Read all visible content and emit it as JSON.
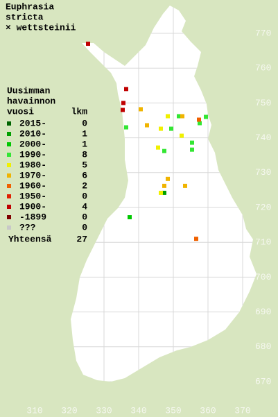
{
  "chart_data": {
    "type": "scatter",
    "title": [
      "Euphrasia",
      "stricta",
      "× wettsteinii"
    ],
    "legend_title": [
      "Uusimman",
      "havainnon",
      "vuosi"
    ],
    "count_label": "lkm",
    "total_label": "Yhteensä",
    "total": 27,
    "xlim": [
      310,
      370
    ],
    "xticks": [
      310,
      320,
      330,
      340,
      350,
      360,
      370
    ],
    "ylim": [
      670,
      770
    ],
    "yticks": [
      670,
      680,
      690,
      700,
      710,
      720,
      730,
      740,
      750,
      760,
      770
    ],
    "grid": true,
    "series": [
      {
        "name": "2015-",
        "color": "#006400",
        "count": 0,
        "x": [],
        "y": []
      },
      {
        "name": "2010-",
        "color": "#00a000",
        "count": 1,
        "x": [
          347.4
        ],
        "y": [
          724.2
        ]
      },
      {
        "name": "2000-",
        "color": "#00c800",
        "count": 1,
        "x": [
          337.4
        ],
        "y": [
          717.2
        ]
      },
      {
        "name": "1990-",
        "color": "#33e633",
        "count": 8,
        "x": [
          336.4,
          351.6,
          359.4,
          357.6,
          349.4,
          355.4,
          355.4,
          347.4
        ],
        "y": [
          743,
          746.2,
          746,
          744.2,
          742.6,
          738.6,
          736.6,
          736.2
        ]
      },
      {
        "name": "1980-",
        "color": "#f0f000",
        "count": 5,
        "x": [
          348.4,
          346.4,
          352.4,
          345.6,
          346.4
        ],
        "y": [
          746.2,
          742.6,
          740.6,
          737.2,
          724.2
        ]
      },
      {
        "name": "1970-",
        "color": "#f0b400",
        "count": 6,
        "x": [
          340.6,
          352.6,
          342.4,
          348.4,
          347.4,
          353.4
        ],
        "y": [
          748.2,
          746.2,
          743.6,
          728.2,
          726.2,
          726.2
        ]
      },
      {
        "name": "1960-",
        "color": "#f06000",
        "count": 2,
        "x": [
          357.4,
          356.6
        ],
        "y": [
          745.2,
          711
        ]
      },
      {
        "name": "1950-",
        "color": "#e02000",
        "count": 0,
        "x": [],
        "y": []
      },
      {
        "name": "1900-",
        "color": "#c00000",
        "count": 4,
        "x": [
          325.4,
          336.4,
          335.6,
          335.4
        ],
        "y": [
          767,
          754,
          750,
          748
        ]
      },
      {
        "name": "-1899",
        "color": "#800000",
        "count": 0,
        "x": [],
        "y": []
      },
      {
        "name": "???",
        "color": "#c8c8c8",
        "count": 0,
        "x": [],
        "y": []
      }
    ]
  }
}
